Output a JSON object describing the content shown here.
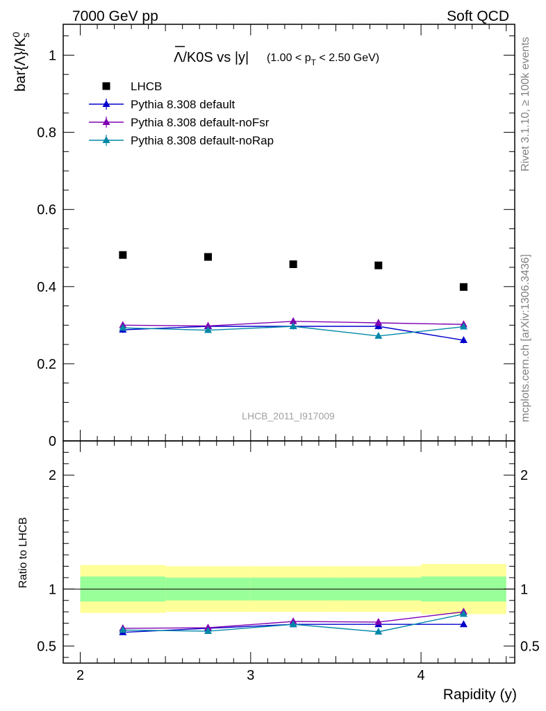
{
  "header": {
    "left": "7000 GeV pp",
    "right": "Soft QCD"
  },
  "title": {
    "main": "Λ/K0S vs |y|",
    "bar_glyph": "Λ",
    "rest": "/K0S vs |y|",
    "cut_prefix": "(1.00 < p",
    "cut_sub": "T",
    "cut_suffix": " < 2.50 GeV)"
  },
  "side_labels": {
    "rivet": "Rivet 3.1.10, ≥ 100k events",
    "mcplots": "mcplots.cern.ch [arXiv:1306.3436]"
  },
  "watermark": "LHCB_2011_I917009",
  "colors": {
    "data": "#000000",
    "default": "#0000cc",
    "noFsr": "#7f00b2",
    "noRap": "#0087a8",
    "band_inner": "#99ff99",
    "band_outer": "#ffff99"
  },
  "chart_data": [
    {
      "type": "scatter",
      "panel": "main",
      "ylabel_base": "bar{Λ}/K",
      "ylabel_sup": "0",
      "ylabel_sub": "s",
      "xlim": [
        1.9,
        4.55
      ],
      "ylim": [
        0,
        1.08
      ],
      "yticks": [
        0,
        0.2,
        0.4,
        0.6,
        0.8,
        1
      ],
      "ytick_labels": [
        "0",
        "0.2",
        "0.4",
        "0.6",
        "0.8",
        "1"
      ],
      "legend_position": "top-left",
      "series": [
        {
          "name": "LHCB",
          "marker": "square",
          "x": [
            2.25,
            2.75,
            3.25,
            3.75,
            4.25
          ],
          "y": [
            0.482,
            0.477,
            0.458,
            0.455,
            0.399
          ],
          "err": [
            0.004,
            0.004,
            0.004,
            0.004,
            0.004
          ]
        },
        {
          "name": "Pythia 8.308 default",
          "marker": "triangle",
          "x": [
            2.25,
            2.75,
            3.25,
            3.75,
            4.25
          ],
          "y": [
            0.288,
            0.297,
            0.297,
            0.297,
            0.261
          ],
          "err": [
            0.008,
            0.008,
            0.008,
            0.008,
            0.008
          ]
        },
        {
          "name": "Pythia 8.308 default-noFsr",
          "marker": "triangle",
          "x": [
            2.25,
            2.75,
            3.25,
            3.75,
            4.25
          ],
          "y": [
            0.3,
            0.298,
            0.31,
            0.306,
            0.302
          ],
          "err": [
            0.008,
            0.008,
            0.008,
            0.008,
            0.008
          ]
        },
        {
          "name": "Pythia 8.308 default-noRap",
          "marker": "triangle",
          "x": [
            2.25,
            2.75,
            3.25,
            3.75,
            4.25
          ],
          "y": [
            0.293,
            0.287,
            0.297,
            0.272,
            0.296
          ],
          "err": [
            0.006,
            0.006,
            0.006,
            0.006,
            0.006
          ]
        }
      ]
    },
    {
      "type": "line",
      "panel": "ratio",
      "ylabel": "Ratio to LHCB",
      "xlabel": "Rapidity (y)",
      "xlim": [
        1.9,
        4.55
      ],
      "ylim": [
        0.35,
        2.3
      ],
      "xticks": [
        2,
        3,
        4
      ],
      "xtick_labels": [
        "2",
        "3",
        "4"
      ],
      "yticks": [
        0.5,
        1,
        2
      ],
      "ytick_labels": [
        "0.5",
        "1",
        "2"
      ],
      "bands": {
        "x_edges": [
          2.0,
          2.5,
          3.0,
          3.5,
          4.0,
          4.5
        ],
        "inner": [
          0.11,
          0.1,
          0.1,
          0.1,
          0.11
        ],
        "outer": [
          0.21,
          0.2,
          0.2,
          0.2,
          0.22
        ]
      },
      "series": [
        {
          "name": "Pythia 8.308 default",
          "x": [
            2.25,
            2.75,
            3.25,
            3.75,
            4.25
          ],
          "y": [
            0.62,
            0.655,
            0.69,
            0.69,
            0.69
          ],
          "err": [
            0.02,
            0.02,
            0.02,
            0.02,
            0.02
          ]
        },
        {
          "name": "Pythia 8.308 default-noFsr",
          "x": [
            2.25,
            2.75,
            3.25,
            3.75,
            4.25
          ],
          "y": [
            0.655,
            0.66,
            0.715,
            0.71,
            0.8
          ],
          "err": [
            0.02,
            0.02,
            0.02,
            0.02,
            0.02
          ]
        },
        {
          "name": "Pythia 8.308 default-noRap",
          "x": [
            2.25,
            2.75,
            3.25,
            3.75,
            4.25
          ],
          "y": [
            0.64,
            0.63,
            0.69,
            0.625,
            0.78
          ],
          "err": [
            0.015,
            0.015,
            0.015,
            0.015,
            0.015
          ]
        }
      ]
    }
  ]
}
